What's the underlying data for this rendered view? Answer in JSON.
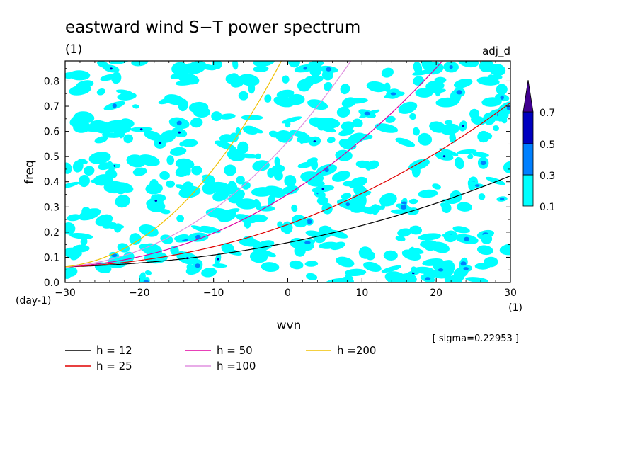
{
  "chart_data": {
    "type": "heatmap",
    "title": "eastward wind S−T power spectrum",
    "subtitle_left": "(1)",
    "subtitle_right": "adj_d",
    "xlabel": "wvn",
    "ylabel": "freq",
    "x_unit": "(1)",
    "y_unit": "(day-1)",
    "xlim": [
      -30,
      30
    ],
    "ylim": [
      0,
      0.88
    ],
    "x_ticks": [
      -30,
      -20,
      -10,
      0,
      10,
      20,
      30
    ],
    "x_tick_labels": [
      "−30",
      "−20",
      "−10",
      "0",
      "10",
      "20",
      "30"
    ],
    "y_ticks": [
      0,
      0.1,
      0.2,
      0.3,
      0.4,
      0.5,
      0.6,
      0.7,
      0.8
    ],
    "y_tick_labels": [
      "0.0",
      "0.1",
      "0.2",
      "0.3",
      "0.4",
      "0.5",
      "0.6",
      "0.7",
      "0.8"
    ],
    "contour_levels": [
      0.1,
      0.3,
      0.5,
      0.7
    ],
    "colorbar": {
      "labels": [
        "0.1",
        "0.3",
        "0.5",
        "0.7"
      ],
      "colors": [
        "#00ffff",
        "#0080ff",
        "#0000c0",
        "#400090"
      ]
    },
    "sigma_text": "[ sigma=0.22953 ]",
    "dispersion_curves": [
      {
        "name": "h = 12",
        "h": 12,
        "color": "#000000"
      },
      {
        "name": "h = 25",
        "h": 25,
        "color": "#e00000"
      },
      {
        "name": "h = 50",
        "h": 50,
        "color": "#e000a0"
      },
      {
        "name": "h =100",
        "h": 100,
        "color": "#e090e0"
      },
      {
        "name": "h =200",
        "h": 200,
        "color": "#f0c000"
      }
    ]
  }
}
